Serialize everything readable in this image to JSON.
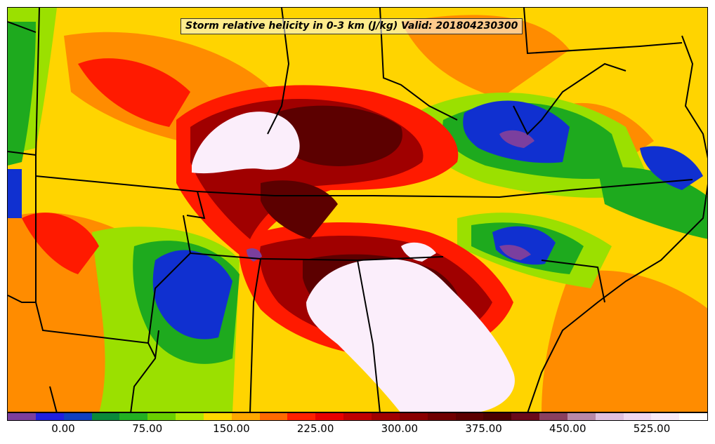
{
  "title": "Storm relative helicity in 0-3 km (J/kg) Valid: 201804230300",
  "colorbar": {
    "colors": [
      "#7b3f9e",
      "#2020e0",
      "#1040c0",
      "#0a8a3a",
      "#22b022",
      "#6ad000",
      "#b0e800",
      "#ffd800",
      "#ffa800",
      "#ff6a00",
      "#ff2000",
      "#e80000",
      "#c00000",
      "#a00000",
      "#8a0000",
      "#700000",
      "#5c0000",
      "#4a0000",
      "#6a0a1a",
      "#8a4060",
      "#b888a8",
      "#e0c0e0",
      "#f0d8f0",
      "#f8eaf8",
      "#ffffff"
    ],
    "tick_labels": [
      "0.00",
      "75.00",
      "150.00",
      "225.00",
      "300.00",
      "375.00",
      "450.00",
      "525.00"
    ]
  },
  "palette": {
    "yellow": "#ffd400",
    "orange": "#ff8c00",
    "red": "#ff1a00",
    "darkred": "#a00000",
    "maroon": "#5c0000",
    "lime": "#9be000",
    "green": "#1eaa1e",
    "darkgreen": "#0a8a3a",
    "blue": "#1030d0",
    "purple": "#7b3f9e",
    "white": "#fbeefb"
  }
}
